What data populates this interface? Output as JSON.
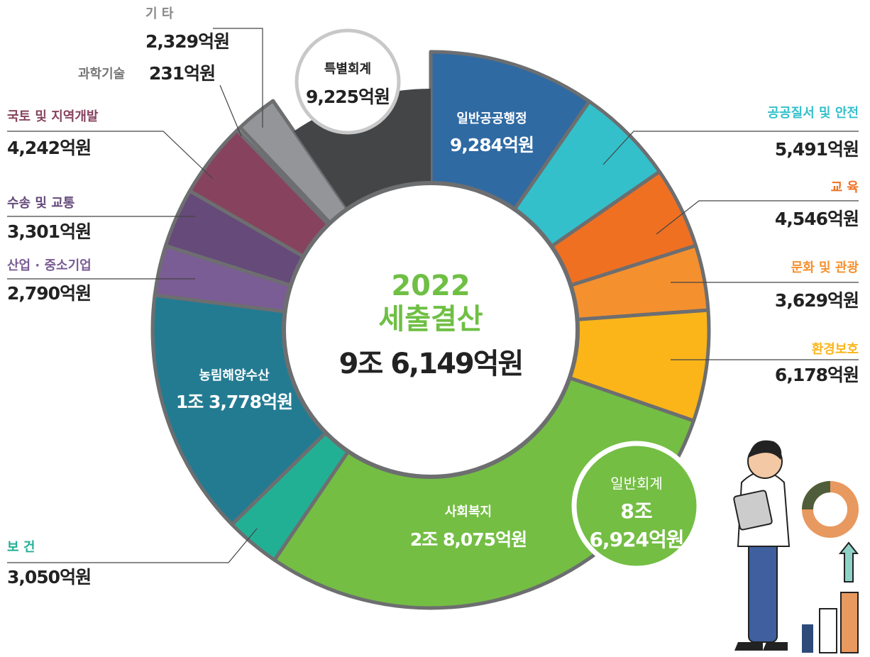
{
  "chart_data": {
    "type": "pie",
    "categories": [
      "일반공공행정",
      "공공질서 및 안전",
      "교 육",
      "문화 및 관광",
      "환경보호",
      "사회복지",
      "보 건",
      "농림해양수산",
      "산업 · 중소기업",
      "수송 및 교통",
      "국토 및 지역개발",
      "과학기술",
      "기 타",
      "특별회계"
    ],
    "values": [
      9284,
      5491,
      4546,
      3629,
      6178,
      28075,
      3050,
      13778,
      2790,
      3301,
      4242,
      231,
      2329,
      9225
    ],
    "value_labels": [
      "9,284억원",
      "5,491억원",
      "4,546억원",
      "3,629억원",
      "6,178억원",
      "2조 8,075억원",
      "3,050억원",
      "1조 3,778억원",
      "2,790억원",
      "3,301억원",
      "4,242억원",
      "231억원",
      "2,329억원",
      "9,225억원"
    ],
    "colors": [
      "#2f6aa3",
      "#33c0cb",
      "#f07022",
      "#f5902e",
      "#fbb519",
      "#74be44",
      "#22b095",
      "#237b92",
      "#7a5d94",
      "#654a7a",
      "#87435e",
      "#9a9b9e",
      "#939598",
      "#444547"
    ],
    "center": {
      "year": "2022",
      "title": "세출결산",
      "total": "9조 6,149억원"
    },
    "badge": {
      "title": "일반회계",
      "lines": [
        "8조",
        "6,924억원"
      ]
    }
  }
}
